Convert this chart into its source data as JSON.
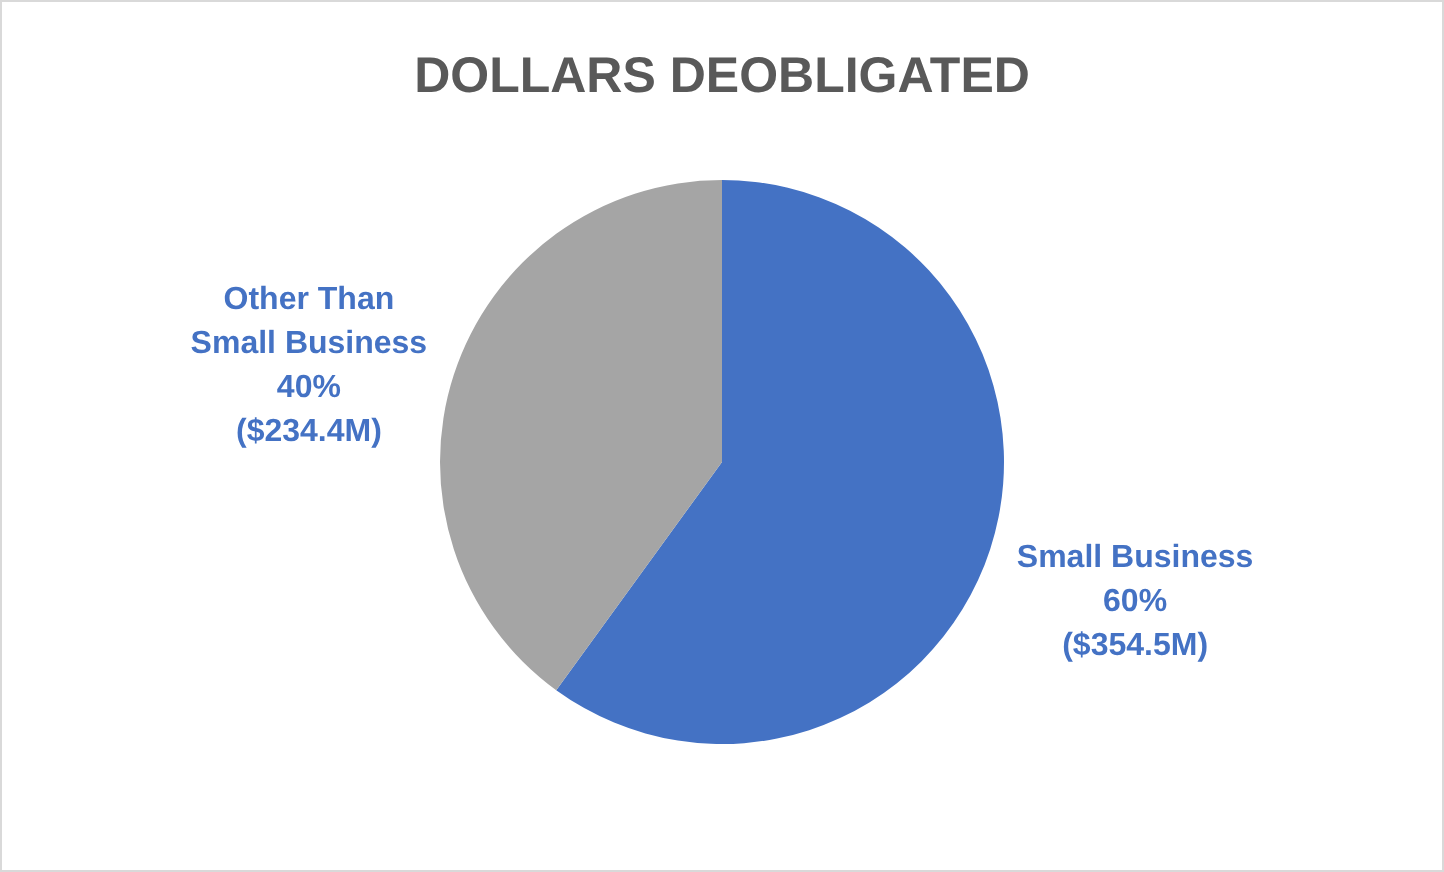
{
  "chart_data": {
    "type": "pie",
    "title": "DOLLARS DEOBLIGATED",
    "categories": [
      "Small Business",
      "Other Than Small Business"
    ],
    "values": [
      60,
      40
    ],
    "colors": [
      "#4472c4",
      "#a5a5a5"
    ],
    "value_labels": [
      "60%\n($354.5M)",
      "40%\n($234.4M)"
    ]
  }
}
